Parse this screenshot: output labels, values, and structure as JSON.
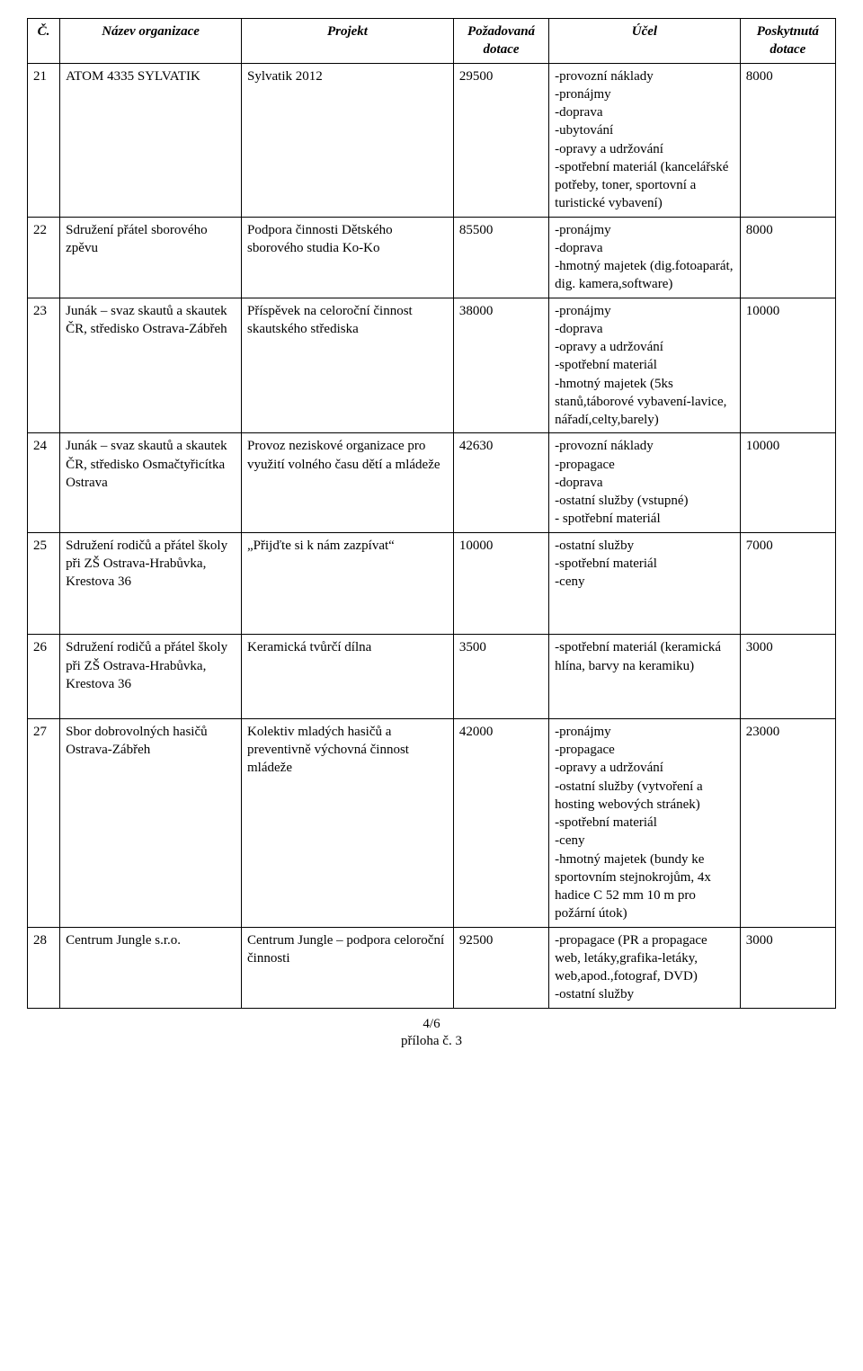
{
  "header": {
    "col0": "Č.",
    "col1": "Název organizace",
    "col2": "Projekt",
    "col3": "Požadovaná dotace",
    "col4": "Účel",
    "col5": "Poskytnutá dotace"
  },
  "rows": [
    {
      "num": "21",
      "org": "ATOM 4335 SYLVATIK",
      "project": "Sylvatik 2012",
      "requested": "29500",
      "purpose": "-provozní náklady\n-pronájmy\n-doprava\n-ubytování\n-opravy a udržování\n-spotřební materiál (kancelářské potřeby, toner, sportovní a turistické vybavení)",
      "granted": "8000"
    },
    {
      "num": "22",
      "org": "Sdružení přátel sborového zpěvu",
      "project": "Podpora činnosti Dětského sborového studia Ko-Ko",
      "requested": "85500",
      "purpose": "-pronájmy\n-doprava\n-hmotný majetek (dig.fotoaparát, dig. kamera,software)",
      "granted": "8000"
    },
    {
      "num": "23",
      "org": "Junák – svaz skautů a skautek ČR, středisko Ostrava-Zábřeh",
      "project": "Příspěvek na celoroční činnost skautského střediska",
      "requested": "38000",
      "purpose": "-pronájmy\n-doprava\n-opravy a udržování\n-spotřební materiál\n-hmotný majetek (5ks stanů,táborové vybavení-lavice, nářadí,celty,barely)",
      "granted": "10000"
    },
    {
      "num": "24",
      "org": "Junák – svaz skautů a skautek ČR, středisko Osmačtyřicítka Ostrava",
      "project": "Provoz neziskové organizace pro využití volného času dětí a mládeže",
      "requested": "42630",
      "purpose": "-provozní náklady\n-propagace\n-doprava\n-ostatní služby (vstupné)\n- spotřební materiál",
      "granted": "10000"
    },
    {
      "num": "25",
      "org": "Sdružení rodičů a přátel školy při ZŠ Ostrava-Hrabůvka, Krestova 36",
      "project": "„Přijďte si k nám zazpívat“",
      "requested": "10000",
      "purpose": "-ostatní služby\n-spotřební materiál\n-ceny",
      "granted": "7000",
      "extra_pad": true
    },
    {
      "num": "26",
      "org": "Sdružení rodičů a přátel školy při ZŠ Ostrava-Hrabůvka, Krestova 36",
      "project": "Keramická tvůrčí dílna",
      "requested": "3500",
      "purpose": "-spotřební materiál (keramická hlína, barvy na keramiku)",
      "granted": "3000",
      "extra_pad": true
    },
    {
      "num": "27",
      "org": "Sbor dobrovolných hasičů Ostrava-Zábřeh",
      "project": "Kolektiv mladých hasičů a preventivně výchovná činnost mládeže",
      "requested": "42000",
      "purpose": "-pronájmy\n-propagace\n-opravy a udržování\n-ostatní služby (vytvoření a hosting webových stránek)\n-spotřební materiál\n-ceny\n-hmotný majetek (bundy ke sportovním stejnokrojům, 4x hadice C 52 mm 10 m pro požární útok)",
      "granted": "23000"
    },
    {
      "num": "28",
      "org": "Centrum Jungle s.r.o.",
      "project": "Centrum Jungle – podpora celoroční činnosti",
      "requested": "92500",
      "purpose": "-propagace  (PR a propagace web, letáky,grafika-letáky, web,apod.,fotograf, DVD)\n-ostatní služby",
      "granted": "3000"
    }
  ],
  "footer": {
    "line1": "4/6",
    "line2": "příloha č. 3"
  }
}
